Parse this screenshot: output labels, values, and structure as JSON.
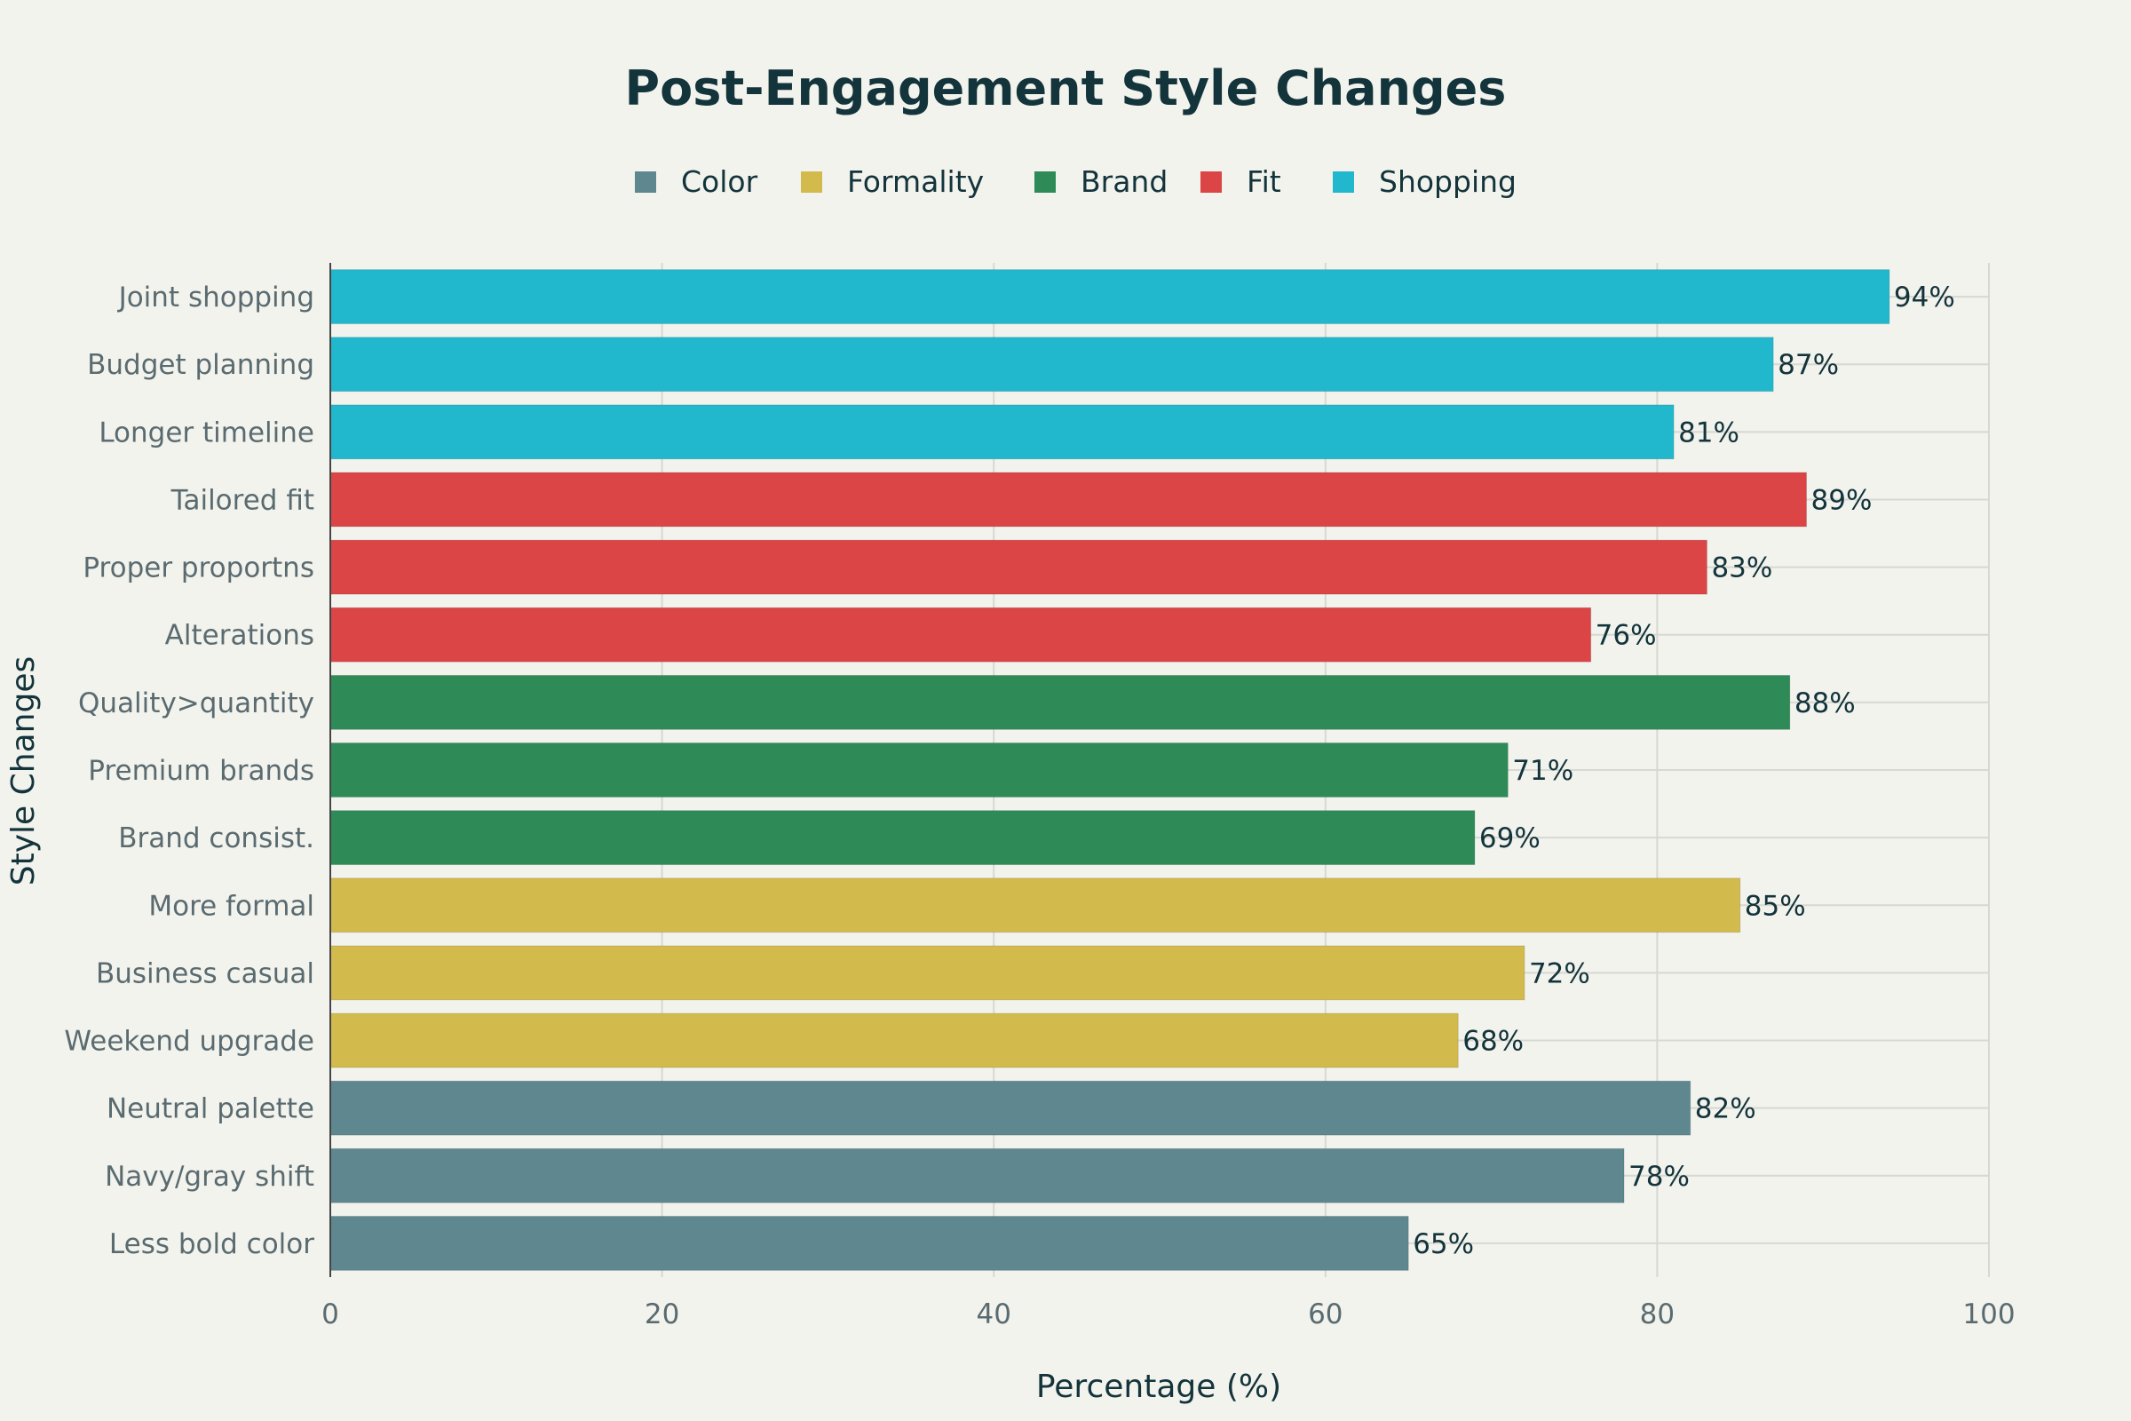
{
  "chart_data": {
    "type": "bar",
    "orientation": "horizontal",
    "title": "Post-Engagement Style Changes",
    "xlabel": "Percentage (%)",
    "ylabel": "Style Changes",
    "xlim": [
      0,
      100
    ],
    "xticks": [
      0,
      20,
      40,
      60,
      80,
      100
    ],
    "grid": true,
    "legend_position": "top-center",
    "legend": [
      {
        "name": "Color",
        "color": "#5e878f"
      },
      {
        "name": "Formality",
        "color": "#d3ba4c"
      },
      {
        "name": "Brand",
        "color": "#2e8b57"
      },
      {
        "name": "Fit",
        "color": "#db4545"
      },
      {
        "name": "Shopping",
        "color": "#21b8cd"
      }
    ],
    "bars": [
      {
        "label": "Joint shopping",
        "value": 94,
        "text": "94%",
        "group": "Shopping"
      },
      {
        "label": "Budget planning",
        "value": 87,
        "text": "87%",
        "group": "Shopping"
      },
      {
        "label": "Longer timeline",
        "value": 81,
        "text": "81%",
        "group": "Shopping"
      },
      {
        "label": "Tailored fit",
        "value": 89,
        "text": "89%",
        "group": "Fit"
      },
      {
        "label": "Proper proportns",
        "value": 83,
        "text": "83%",
        "group": "Fit"
      },
      {
        "label": "Alterations",
        "value": 76,
        "text": "76%",
        "group": "Fit"
      },
      {
        "label": "Quality>quantity",
        "value": 88,
        "text": "88%",
        "group": "Brand"
      },
      {
        "label": "Premium brands",
        "value": 71,
        "text": "71%",
        "group": "Brand"
      },
      {
        "label": "Brand consist.",
        "value": 69,
        "text": "69%",
        "group": "Brand"
      },
      {
        "label": "More formal",
        "value": 85,
        "text": "85%",
        "group": "Formality"
      },
      {
        "label": "Business casual",
        "value": 72,
        "text": "72%",
        "group": "Formality"
      },
      {
        "label": "Weekend upgrade",
        "value": 68,
        "text": "68%",
        "group": "Formality"
      },
      {
        "label": "Neutral palette",
        "value": 82,
        "text": "82%",
        "group": "Color"
      },
      {
        "label": "Navy/gray shift",
        "value": 78,
        "text": "78%",
        "group": "Color"
      },
      {
        "label": "Less bold color",
        "value": 65,
        "text": "65%",
        "group": "Color"
      }
    ]
  }
}
